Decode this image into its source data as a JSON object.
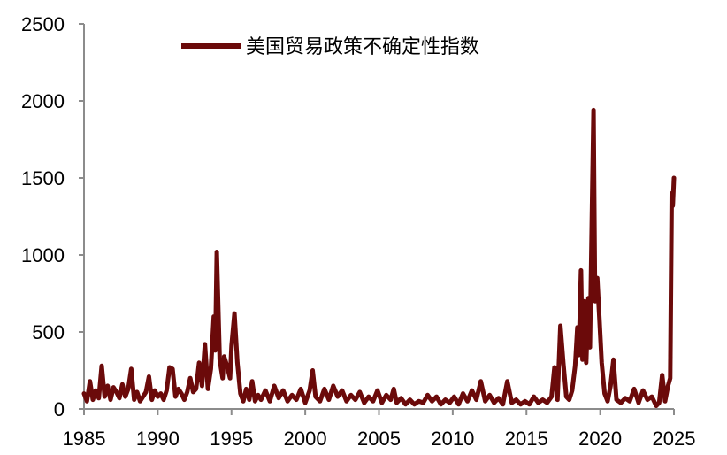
{
  "chart_data": {
    "type": "line",
    "title": "",
    "xlabel": "",
    "ylabel": "",
    "xlim": [
      1985,
      2025
    ],
    "ylim": [
      0,
      2500
    ],
    "grid": false,
    "legend_position": "top-center",
    "x_ticks": [
      1985,
      1990,
      1995,
      2000,
      2005,
      2010,
      2015,
      2020,
      2025
    ],
    "y_ticks": [
      0,
      500,
      1000,
      1500,
      2000,
      2500
    ],
    "x_tick_labels": [
      "1985",
      "1990",
      "1995",
      "2000",
      "2005",
      "2010",
      "2015",
      "2020",
      "2025"
    ],
    "y_tick_labels": [
      "0",
      "500",
      "1000",
      "1500",
      "2000",
      "2500"
    ],
    "series": [
      {
        "name": "美国贸易政策不确定性指数",
        "color": "#6b0a0a",
        "points": [
          [
            1985.0,
            100
          ],
          [
            1985.2,
            50
          ],
          [
            1985.4,
            180
          ],
          [
            1985.6,
            60
          ],
          [
            1985.8,
            120
          ],
          [
            1986.0,
            70
          ],
          [
            1986.2,
            280
          ],
          [
            1986.4,
            80
          ],
          [
            1986.6,
            150
          ],
          [
            1986.8,
            60
          ],
          [
            1987.0,
            140
          ],
          [
            1987.2,
            110
          ],
          [
            1987.4,
            70
          ],
          [
            1987.6,
            160
          ],
          [
            1987.8,
            80
          ],
          [
            1988.0,
            130
          ],
          [
            1988.2,
            260
          ],
          [
            1988.4,
            60
          ],
          [
            1988.6,
            110
          ],
          [
            1988.8,
            50
          ],
          [
            1989.0,
            80
          ],
          [
            1989.2,
            110
          ],
          [
            1989.4,
            210
          ],
          [
            1989.6,
            60
          ],
          [
            1989.8,
            120
          ],
          [
            1990.0,
            80
          ],
          [
            1990.2,
            100
          ],
          [
            1990.4,
            60
          ],
          [
            1990.6,
            120
          ],
          [
            1990.8,
            270
          ],
          [
            1991.0,
            260
          ],
          [
            1991.2,
            80
          ],
          [
            1991.4,
            130
          ],
          [
            1991.6,
            100
          ],
          [
            1991.8,
            60
          ],
          [
            1992.0,
            110
          ],
          [
            1992.2,
            200
          ],
          [
            1992.4,
            110
          ],
          [
            1992.6,
            130
          ],
          [
            1992.8,
            300
          ],
          [
            1993.0,
            150
          ],
          [
            1993.2,
            420
          ],
          [
            1993.4,
            130
          ],
          [
            1993.6,
            260
          ],
          [
            1993.8,
            600
          ],
          [
            1993.9,
            380
          ],
          [
            1994.0,
            1020
          ],
          [
            1994.2,
            320
          ],
          [
            1994.4,
            200
          ],
          [
            1994.5,
            340
          ],
          [
            1994.7,
            280
          ],
          [
            1994.9,
            200
          ],
          [
            1995.0,
            410
          ],
          [
            1995.2,
            620
          ],
          [
            1995.4,
            300
          ],
          [
            1995.6,
            100
          ],
          [
            1995.8,
            50
          ],
          [
            1996.0,
            130
          ],
          [
            1996.2,
            60
          ],
          [
            1996.4,
            180
          ],
          [
            1996.6,
            50
          ],
          [
            1996.8,
            90
          ],
          [
            1997.0,
            60
          ],
          [
            1997.3,
            120
          ],
          [
            1997.6,
            50
          ],
          [
            1997.9,
            150
          ],
          [
            1998.2,
            70
          ],
          [
            1998.5,
            120
          ],
          [
            1998.8,
            50
          ],
          [
            1999.1,
            90
          ],
          [
            1999.4,
            60
          ],
          [
            1999.7,
            130
          ],
          [
            2000.0,
            40
          ],
          [
            2000.3,
            120
          ],
          [
            2000.5,
            250
          ],
          [
            2000.7,
            80
          ],
          [
            2001.0,
            50
          ],
          [
            2001.3,
            130
          ],
          [
            2001.6,
            60
          ],
          [
            2001.9,
            150
          ],
          [
            2002.2,
            80
          ],
          [
            2002.5,
            120
          ],
          [
            2002.8,
            50
          ],
          [
            2003.1,
            90
          ],
          [
            2003.4,
            60
          ],
          [
            2003.7,
            110
          ],
          [
            2004.0,
            40
          ],
          [
            2004.3,
            80
          ],
          [
            2004.6,
            50
          ],
          [
            2004.9,
            120
          ],
          [
            2005.2,
            40
          ],
          [
            2005.5,
            90
          ],
          [
            2005.8,
            60
          ],
          [
            2006.0,
            130
          ],
          [
            2006.2,
            40
          ],
          [
            2006.5,
            70
          ],
          [
            2006.8,
            30
          ],
          [
            2007.1,
            60
          ],
          [
            2007.4,
            30
          ],
          [
            2007.7,
            50
          ],
          [
            2008.0,
            40
          ],
          [
            2008.3,
            90
          ],
          [
            2008.6,
            50
          ],
          [
            2008.9,
            80
          ],
          [
            2009.2,
            30
          ],
          [
            2009.5,
            60
          ],
          [
            2009.8,
            40
          ],
          [
            2010.1,
            80
          ],
          [
            2010.4,
            30
          ],
          [
            2010.7,
            100
          ],
          [
            2011.0,
            50
          ],
          [
            2011.3,
            120
          ],
          [
            2011.6,
            60
          ],
          [
            2011.9,
            180
          ],
          [
            2012.2,
            50
          ],
          [
            2012.5,
            90
          ],
          [
            2012.8,
            40
          ],
          [
            2013.1,
            70
          ],
          [
            2013.4,
            30
          ],
          [
            2013.7,
            180
          ],
          [
            2014.0,
            40
          ],
          [
            2014.3,
            60
          ],
          [
            2014.6,
            30
          ],
          [
            2014.9,
            50
          ],
          [
            2015.2,
            30
          ],
          [
            2015.5,
            80
          ],
          [
            2015.8,
            40
          ],
          [
            2016.1,
            60
          ],
          [
            2016.4,
            40
          ],
          [
            2016.7,
            80
          ],
          [
            2016.9,
            270
          ],
          [
            2017.1,
            60
          ],
          [
            2017.3,
            540
          ],
          [
            2017.5,
            300
          ],
          [
            2017.7,
            80
          ],
          [
            2017.9,
            60
          ],
          [
            2018.1,
            120
          ],
          [
            2018.3,
            280
          ],
          [
            2018.45,
            530
          ],
          [
            2018.55,
            350
          ],
          [
            2018.7,
            900
          ],
          [
            2018.8,
            320
          ],
          [
            2018.95,
            700
          ],
          [
            2019.05,
            300
          ],
          [
            2019.2,
            720
          ],
          [
            2019.3,
            400
          ],
          [
            2019.45,
            1350
          ],
          [
            2019.55,
            1940
          ],
          [
            2019.65,
            700
          ],
          [
            2019.8,
            850
          ],
          [
            2019.95,
            580
          ],
          [
            2020.1,
            300
          ],
          [
            2020.3,
            100
          ],
          [
            2020.5,
            50
          ],
          [
            2020.7,
            150
          ],
          [
            2020.9,
            320
          ],
          [
            2021.1,
            60
          ],
          [
            2021.4,
            40
          ],
          [
            2021.7,
            70
          ],
          [
            2022.0,
            50
          ],
          [
            2022.3,
            130
          ],
          [
            2022.6,
            40
          ],
          [
            2022.9,
            120
          ],
          [
            2023.2,
            60
          ],
          [
            2023.5,
            80
          ],
          [
            2023.8,
            20
          ],
          [
            2024.0,
            40
          ],
          [
            2024.2,
            220
          ],
          [
            2024.4,
            50
          ],
          [
            2024.6,
            150
          ],
          [
            2024.75,
            200
          ],
          [
            2024.85,
            1400
          ],
          [
            2024.92,
            1320
          ],
          [
            2025.0,
            1500
          ]
        ]
      }
    ]
  }
}
